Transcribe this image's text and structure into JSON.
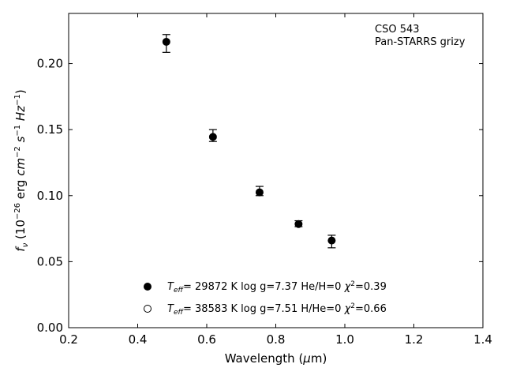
{
  "chart_data": {
    "type": "scatter",
    "xlabel": "Wavelength (μm)",
    "ylabel": "f_ν (10^-26 erg cm^-2 s^-1 Hz^-1)",
    "xlim": [
      0.2,
      1.4
    ],
    "ylim": [
      0.0,
      0.238
    ],
    "xticks": [
      0.2,
      0.4,
      0.6,
      0.8,
      1.0,
      1.2,
      1.4
    ],
    "yticks": [
      0.0,
      0.05,
      0.1,
      0.15,
      0.2
    ],
    "grid": false,
    "annotation": [
      "CSO 543",
      "Pan-STARRS grizy"
    ],
    "series": [
      {
        "marker": "filled-circle",
        "color": "#000000",
        "x": [
          0.483,
          0.618,
          0.753,
          0.866,
          0.962
        ],
        "y": [
          0.2165,
          0.1445,
          0.1025,
          0.0785,
          0.066
        ],
        "yerr_low": [
          0.2085,
          0.141,
          0.1,
          0.0765,
          0.0605
        ],
        "yerr_high": [
          0.222,
          0.15,
          0.107,
          0.081,
          0.07
        ]
      }
    ],
    "legend": {
      "placement": "lower-center",
      "entries": [
        {
          "marker": "filled-circle",
          "label": "T_eff= 29872 K  log g=7.37  He/H=0  χ²=0.39"
        },
        {
          "marker": "open-circle",
          "label": "T_eff= 38583 K  log g=7.51  H/He=0  χ²=0.66"
        }
      ]
    }
  }
}
